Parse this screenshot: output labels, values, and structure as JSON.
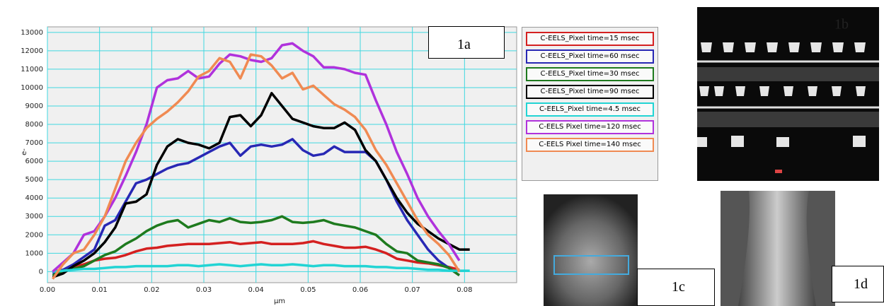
{
  "chart_data": {
    "type": "line",
    "y_label": "e-",
    "x_label": "µm",
    "xlim": [
      0,
      0.09
    ],
    "ylim": [
      -600,
      13300
    ],
    "xticks": [
      {
        "value": 0,
        "label": "0.00"
      },
      {
        "value": 0.01,
        "label": "0.01"
      },
      {
        "value": 0.02,
        "label": "0.02"
      },
      {
        "value": 0.03,
        "label": "0.03"
      },
      {
        "value": 0.04,
        "label": "0.04"
      },
      {
        "value": 0.05,
        "label": "0.05"
      },
      {
        "value": 0.06,
        "label": "0.06"
      },
      {
        "value": 0.07,
        "label": "0.07"
      },
      {
        "value": 0.08,
        "label": "0.08"
      }
    ],
    "yticks": [
      0,
      1000,
      2000,
      3000,
      4000,
      5000,
      6000,
      7000,
      8000,
      9000,
      10000,
      11000,
      12000,
      13000
    ],
    "grid": true,
    "x": [
      0.001,
      0.003,
      0.005,
      0.007,
      0.009,
      0.011,
      0.013,
      0.015,
      0.017,
      0.019,
      0.021,
      0.023,
      0.025,
      0.027,
      0.029,
      0.031,
      0.033,
      0.035,
      0.037,
      0.039,
      0.041,
      0.043,
      0.045,
      0.047,
      0.049,
      0.051,
      0.053,
      0.055,
      0.057,
      0.059,
      0.061,
      0.063,
      0.065,
      0.067,
      0.069,
      0.071,
      0.073,
      0.075,
      0.077,
      0.079,
      0.081
    ],
    "series": [
      {
        "name": "C-EELS_Pixel time=15 msec",
        "color": "#d42020",
        "values": [
          0,
          100,
          250,
          400,
          600,
          700,
          750,
          900,
          1100,
          1250,
          1300,
          1400,
          1450,
          1500,
          1500,
          1500,
          1550,
          1600,
          1500,
          1550,
          1600,
          1500,
          1500,
          1500,
          1550,
          1650,
          1500,
          1400,
          1300,
          1300,
          1350,
          1200,
          1000,
          700,
          600,
          500,
          450,
          350,
          250,
          100,
          null
        ]
      },
      {
        "name": "C-EELS_Pixel time=60 msec",
        "color": "#2828b4",
        "values": [
          -100,
          100,
          400,
          800,
          1200,
          2500,
          2800,
          3800,
          4800,
          5000,
          5300,
          5600,
          5800,
          5900,
          6200,
          6500,
          6800,
          7000,
          6300,
          6800,
          6900,
          6800,
          6900,
          7200,
          6600,
          6300,
          6400,
          6800,
          6500,
          6500,
          6500,
          6000,
          5000,
          3800,
          2800,
          2000,
          1200,
          600,
          200,
          -200,
          null
        ]
      },
      {
        "name": "C-EELS_Pixel time=30 msec",
        "color": "#1e7a1e",
        "values": [
          -200,
          50,
          150,
          300,
          600,
          900,
          1100,
          1500,
          1800,
          2200,
          2500,
          2700,
          2800,
          2400,
          2600,
          2800,
          2700,
          2900,
          2700,
          2650,
          2700,
          2800,
          3000,
          2700,
          2650,
          2700,
          2800,
          2600,
          2500,
          2400,
          2200,
          2000,
          1500,
          1100,
          1000,
          600,
          500,
          400,
          200,
          -200,
          null
        ]
      },
      {
        "name": "C-EELS_Pixel time=90 msec",
        "color": "#000000",
        "values": [
          -300,
          -100,
          300,
          600,
          1000,
          1600,
          2400,
          3700,
          3800,
          4200,
          5800,
          6800,
          7200,
          7000,
          6900,
          6700,
          7000,
          8400,
          8500,
          7900,
          8500,
          9700,
          9000,
          8300,
          8100,
          7900,
          7800,
          7800,
          8100,
          7700,
          6600,
          6000,
          5000,
          4000,
          3200,
          2600,
          2200,
          1800,
          1500,
          1200,
          1200
        ]
      },
      {
        "name": "C-EELS_Pixel time=4.5 msec",
        "color": "#22d4d4",
        "values": [
          0,
          50,
          100,
          150,
          150,
          200,
          250,
          250,
          300,
          300,
          300,
          300,
          350,
          350,
          300,
          350,
          400,
          350,
          300,
          350,
          400,
          350,
          350,
          400,
          350,
          300,
          350,
          350,
          300,
          300,
          300,
          250,
          250,
          200,
          200,
          150,
          100,
          100,
          50,
          50,
          50
        ]
      },
      {
        "name": "C-EELS Pixel time=120 msec",
        "color": "#b032dc",
        "values": [
          0,
          500,
          1000,
          2000,
          2200,
          3000,
          4000,
          5200,
          6500,
          8000,
          10000,
          10400,
          10500,
          10900,
          10500,
          10600,
          11300,
          11800,
          11700,
          11500,
          11400,
          11600,
          12300,
          12400,
          12000,
          11700,
          11100,
          11100,
          11000,
          10800,
          10700,
          9300,
          8000,
          6500,
          5300,
          4000,
          3000,
          2200,
          1500,
          600,
          null
        ]
      },
      {
        "name": "C-EELS Pixel time=140 msec",
        "color": "#f08a52",
        "values": [
          -400,
          400,
          1000,
          1200,
          2000,
          3000,
          4500,
          6000,
          7000,
          7800,
          8300,
          8700,
          9200,
          9800,
          10600,
          10900,
          11600,
          11400,
          10500,
          11800,
          11700,
          11200,
          10500,
          10800,
          9900,
          10100,
          9600,
          9100,
          8800,
          8400,
          7700,
          6600,
          5800,
          4800,
          3800,
          2800,
          2000,
          1500,
          900,
          0,
          null
        ]
      }
    ]
  },
  "panel_labels": [
    "1a",
    "1b",
    "1c",
    "1d"
  ]
}
